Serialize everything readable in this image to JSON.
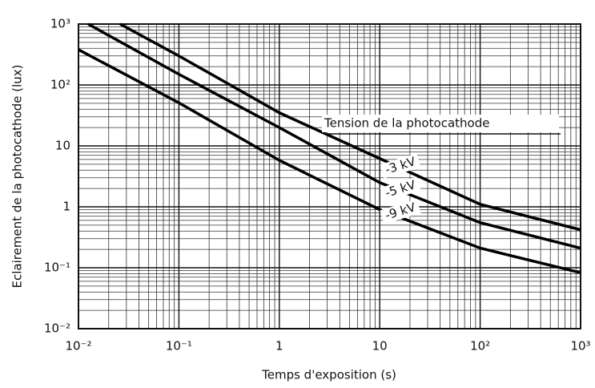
{
  "chart_data": {
    "type": "line",
    "x_label": "Temps d'exposition (s)",
    "y_label": "Eclairement de la photocathode (lux)",
    "annotation": "Tension de la photocathode",
    "log_x": true,
    "log_y": true,
    "grid": true,
    "xlim": [
      0.01,
      1000
    ],
    "ylim": [
      0.01,
      1000
    ],
    "xticks": [
      {
        "value": 0.01,
        "label": "10⁻²"
      },
      {
        "value": 0.1,
        "label": "10⁻¹"
      },
      1,
      10,
      {
        "value": 100,
        "label": "10²"
      },
      {
        "value": 1000,
        "label": "10³"
      }
    ],
    "yticks": [
      {
        "value": 0.01,
        "label": "10⁻²"
      },
      {
        "value": 0.1,
        "label": "10⁻¹"
      },
      1,
      10,
      {
        "value": 100,
        "label": "10²"
      },
      {
        "value": 1000,
        "label": "10³"
      }
    ],
    "x": [
      0.026,
      0.1,
      1,
      10,
      100,
      1000
    ],
    "series": [
      {
        "name": "-3 kV",
        "color": "#000000",
        "x": [
          0.026,
          0.1,
          1,
          10,
          100,
          1000
        ],
        "values": [
          1000,
          300,
          35,
          6.2,
          1.1,
          0.42
        ]
      },
      {
        "name": "-5 kV",
        "color": "#000000",
        "x": [
          0.0125,
          0.1,
          1,
          10,
          100,
          1000
        ],
        "values": [
          1000,
          150,
          20,
          2.5,
          0.55,
          0.21
        ]
      },
      {
        "name": "-9 kV",
        "color": "#000000",
        "x": [
          0.01,
          0.1,
          1,
          10,
          100,
          1000
        ],
        "values": [
          380,
          51,
          5.8,
          0.9,
          0.21,
          0.083
        ]
      }
    ]
  }
}
